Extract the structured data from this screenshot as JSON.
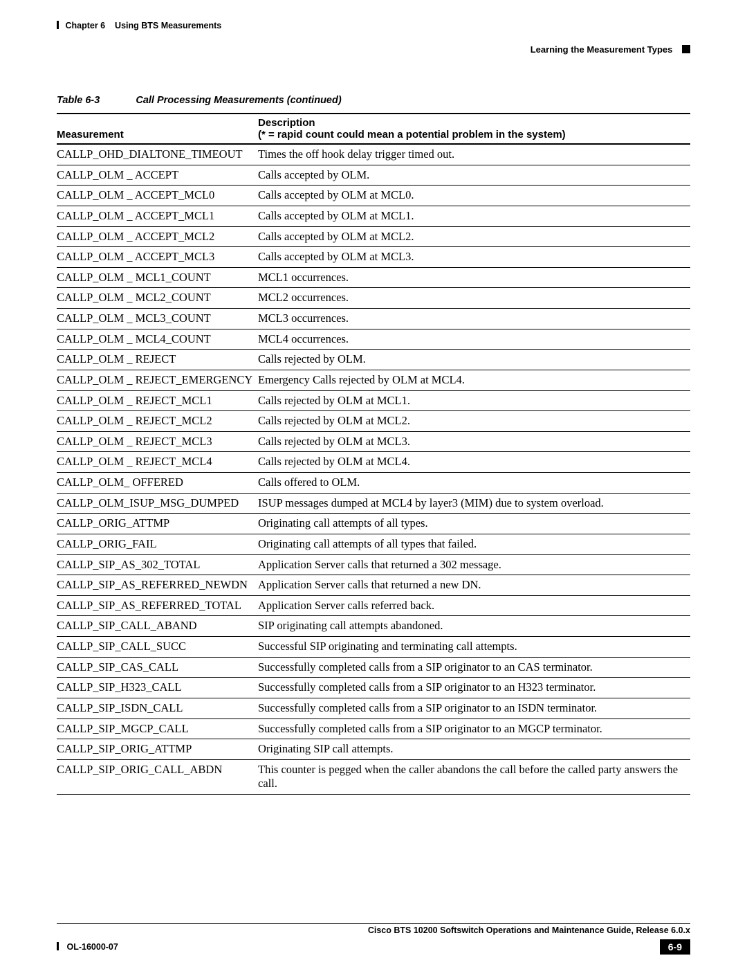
{
  "header": {
    "chapter_label": "Chapter 6",
    "chapter_title": "Using BTS Measurements",
    "section_title": "Learning the Measurement Types"
  },
  "table": {
    "caption_number": "Table 6-3",
    "caption_title": "Call Processing Measurements (continued)",
    "columns": {
      "col1": "Measurement",
      "col2_line1": "Description",
      "col2_line2": "(* = rapid count could mean a potential problem in the system)"
    },
    "rows": [
      {
        "m": "CALLP_OHD_DIALTONE_TIMEOUT",
        "d": "Times the off hook delay trigger timed out."
      },
      {
        "m": "CALLP_OLM _ ACCEPT",
        "d": "Calls accepted by OLM."
      },
      {
        "m": "CALLP_OLM _ ACCEPT_MCL0",
        "d": "Calls accepted by OLM at MCL0."
      },
      {
        "m": "CALLP_OLM _ ACCEPT_MCL1",
        "d": "Calls accepted by OLM at MCL1."
      },
      {
        "m": "CALLP_OLM _ ACCEPT_MCL2",
        "d": "Calls accepted by OLM at MCL2."
      },
      {
        "m": "CALLP_OLM _ ACCEPT_MCL3",
        "d": "Calls accepted by OLM at MCL3."
      },
      {
        "m": "CALLP_OLM _ MCL1_COUNT",
        "d": "MCL1 occurrences."
      },
      {
        "m": "CALLP_OLM _ MCL2_COUNT",
        "d": "MCL2 occurrences."
      },
      {
        "m": "CALLP_OLM _ MCL3_COUNT",
        "d": "MCL3 occurrences."
      },
      {
        "m": "CALLP_OLM _ MCL4_COUNT",
        "d": "MCL4 occurrences."
      },
      {
        "m": "CALLP_OLM _ REJECT",
        "d": "Calls rejected by OLM."
      },
      {
        "m": "CALLP_OLM _ REJECT_EMERGENCY",
        "d": "Emergency Calls rejected by OLM at MCL4."
      },
      {
        "m": "CALLP_OLM _ REJECT_MCL1",
        "d": "Calls rejected by OLM at MCL1."
      },
      {
        "m": "CALLP_OLM _ REJECT_MCL2",
        "d": "Calls rejected by OLM at MCL2."
      },
      {
        "m": "CALLP_OLM _ REJECT_MCL3",
        "d": "Calls rejected by OLM at MCL3."
      },
      {
        "m": "CALLP_OLM _ REJECT_MCL4",
        "d": "Calls rejected by OLM at MCL4."
      },
      {
        "m": "CALLP_OLM_ OFFERED",
        "d": "Calls offered to OLM."
      },
      {
        "m": "CALLP_OLM_ISUP_MSG_DUMPED",
        "d": "ISUP messages dumped at MCL4 by layer3 (MIM) due to system overload."
      },
      {
        "m": "CALLP_ORIG_ATTMP",
        "d": "Originating call attempts of all types."
      },
      {
        "m": "CALLP_ORIG_FAIL",
        "d": "Originating call attempts of all types that failed."
      },
      {
        "m": "CALLP_SIP_AS_302_TOTAL",
        "d": "Application Server calls that returned a 302 message."
      },
      {
        "m": "CALLP_SIP_AS_REFERRED_NEWDN",
        "d": "Application Server calls that returned a new DN."
      },
      {
        "m": "CALLP_SIP_AS_REFERRED_TOTAL",
        "d": "Application Server calls referred back."
      },
      {
        "m": "CALLP_SIP_CALL_ABAND",
        "d": "SIP originating call attempts abandoned."
      },
      {
        "m": "CALLP_SIP_CALL_SUCC",
        "d": "Successful SIP originating and terminating call attempts."
      },
      {
        "m": "CALLP_SIP_CAS_CALL",
        "d": "Successfully completed calls from a SIP originator to an CAS terminator."
      },
      {
        "m": "CALLP_SIP_H323_CALL",
        "d": "Successfully completed calls from a SIP originator to an H323 terminator."
      },
      {
        "m": "CALLP_SIP_ISDN_CALL",
        "d": "Successfully completed calls from a SIP originator to an ISDN terminator."
      },
      {
        "m": "CALLP_SIP_MGCP_CALL",
        "d": "Successfully completed calls from a SIP originator to an MGCP terminator."
      },
      {
        "m": "CALLP_SIP_ORIG_ATTMP",
        "d": "Originating SIP call attempts."
      },
      {
        "m": "CALLP_SIP_ORIG_CALL_ABDN",
        "d": "This counter is pegged when the caller abandons the call before the called party answers the call."
      }
    ]
  },
  "footer": {
    "guide_title": "Cisco BTS 10200 Softswitch Operations and Maintenance Guide, Release 6.0.x",
    "doc_id": "OL-16000-07",
    "page_number": "6-9"
  }
}
